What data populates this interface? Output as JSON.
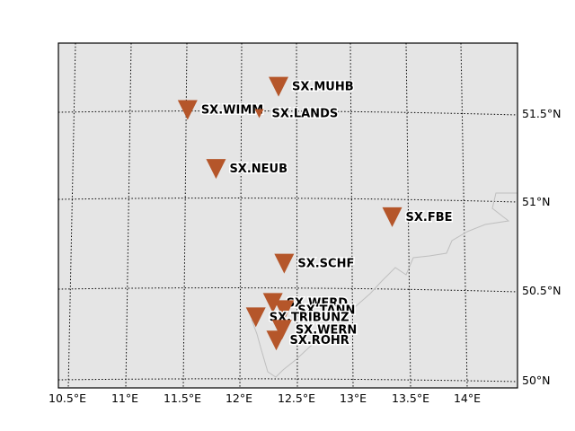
{
  "map": {
    "projection_note": "Lambert-style conic view over Saxony region",
    "background_color": "#e5e5e5",
    "station_color": "#b5562a",
    "border_color": "#bfbfbf",
    "graticule_style": "dotted black",
    "x_ticks": [
      "10.5°E",
      "11°E",
      "11.5°E",
      "12°E",
      "12.5°E",
      "13°E",
      "13.5°E",
      "14°E"
    ],
    "y_ticks": [
      "50°N",
      "50.5°N",
      "51°N",
      "51.5°N"
    ],
    "stations": [
      {
        "label": "SX.MUHB",
        "lon": 12.35,
        "lat": 51.64,
        "marker": "large"
      },
      {
        "label": "SX.WIMM",
        "lon": 11.55,
        "lat": 51.51,
        "marker": "large"
      },
      {
        "label": "SX.LANDS",
        "lon": 12.18,
        "lat": 51.49,
        "marker": "small"
      },
      {
        "label": "SX.NEUB",
        "lon": 11.8,
        "lat": 51.18,
        "marker": "large"
      },
      {
        "label": "SX.FBE",
        "lon": 13.35,
        "lat": 50.91,
        "marker": "large"
      },
      {
        "label": "SX.SCHF",
        "lon": 12.4,
        "lat": 50.65,
        "marker": "large"
      },
      {
        "label": "SX.WERD",
        "lon": 12.3,
        "lat": 50.43,
        "marker": "large"
      },
      {
        "label": "SX.TANN",
        "lon": 12.4,
        "lat": 50.39,
        "marker": "large"
      },
      {
        "label": "SX.TRIBUNZ",
        "lon": 12.15,
        "lat": 50.35,
        "marker": "large"
      },
      {
        "label": "SX.WERN",
        "lon": 12.38,
        "lat": 50.28,
        "marker": "large"
      },
      {
        "label": "SX.ROHR",
        "lon": 12.33,
        "lat": 50.22,
        "marker": "large"
      }
    ]
  }
}
